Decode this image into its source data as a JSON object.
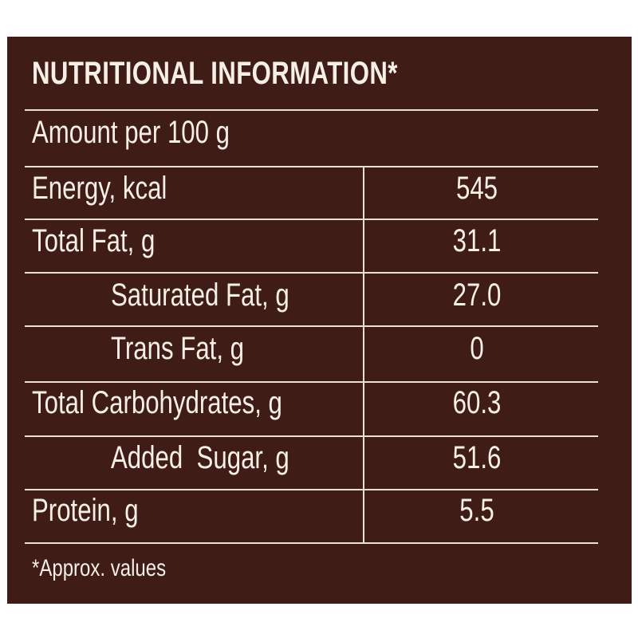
{
  "title": "NUTRITIONAL INFORMATION*",
  "serving": "Amount per 100 g",
  "rows": [
    {
      "label": "Energy, kcal",
      "value": "545"
    },
    {
      "label": "Total Fat, g",
      "value": "31.1"
    },
    {
      "label": "Saturated Fat, g",
      "value": "27.0"
    },
    {
      "label": "Trans Fat, g",
      "value": "0"
    },
    {
      "label": "Total Carbohydrates, g",
      "value": "60.3"
    },
    {
      "label": "Added  Sugar, g",
      "value": "51.6"
    },
    {
      "label": "Protein, g",
      "value": "5.5"
    }
  ],
  "footnote": "*Approx. values",
  "colors": {
    "background": "#3f1c15",
    "text": "#f6efe6"
  }
}
